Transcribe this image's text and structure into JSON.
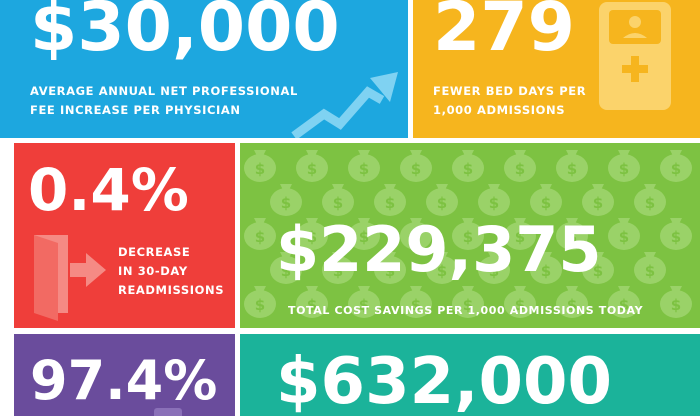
{
  "colors": {
    "blue": "#1DA7DF",
    "yellow": "#F6B51E",
    "red": "#EF3E3A",
    "green": "#7DC242",
    "purple": "#6A4C9C",
    "teal": "#1BB39A"
  },
  "tiles": {
    "fee": {
      "value": "$30,000",
      "caption_line1": "AVERAGE ANNUAL NET PROFESSIONAL",
      "caption_line2": "FEE INCREASE PER PHYSICIAN",
      "icon": "trend-arrow-icon"
    },
    "beds": {
      "value": "279",
      "caption_line1": "FEWER BED DAYS PER",
      "caption_line2": "1,000 ADMISSIONS",
      "icon": "hospital-bed-icon"
    },
    "readmissions": {
      "value": "0.4%",
      "caption_line1": "DECREASE",
      "caption_line2": "IN 30-DAY",
      "caption_line3": "READMISSIONS",
      "icon": "exit-door-icon"
    },
    "savings": {
      "value": "$229,375",
      "caption": "TOTAL COST SAVINGS PER 1,000 ADMISSIONS TODAY",
      "icon": "money-bag-icon"
    },
    "percent": {
      "value": "97.4%"
    },
    "future": {
      "value": "$632,000"
    }
  }
}
